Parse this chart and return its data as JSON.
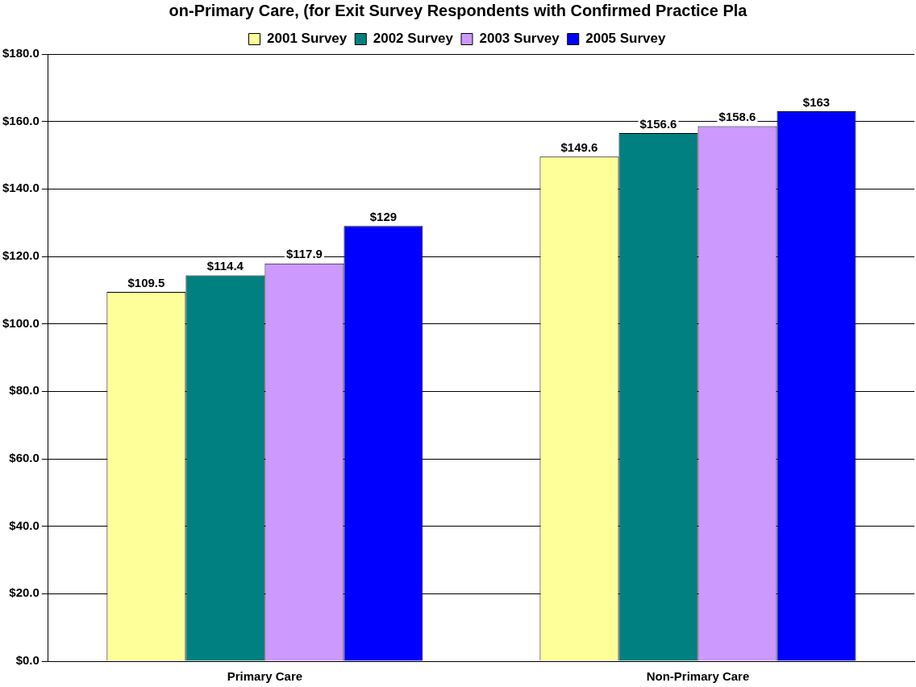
{
  "chart_data": {
    "type": "bar",
    "title": "on-Primary Care, (for Exit Survey Respondents with Confirmed Practice Pla",
    "categories": [
      "Primary Care",
      "Non-Primary Care"
    ],
    "series": [
      {
        "name": "2001 Survey",
        "color": "#ffff99",
        "values": [
          109.5,
          149.6
        ],
        "value_labels": [
          "$109.5",
          "$149.6"
        ]
      },
      {
        "name": "2002 Survey",
        "color": "#008080",
        "values": [
          114.4,
          156.6
        ],
        "value_labels": [
          "$114.4",
          "$156.6"
        ]
      },
      {
        "name": "2003 Survey",
        "color": "#cc99ff",
        "values": [
          117.9,
          158.6
        ],
        "value_labels": [
          "$117.9",
          "$158.6"
        ]
      },
      {
        "name": "2005 Survey",
        "color": "#0000ff",
        "values": [
          129,
          163
        ],
        "value_labels": [
          "$129",
          "$163"
        ]
      }
    ],
    "ylim": [
      0,
      180
    ],
    "yticks": [
      {
        "value": 0,
        "label": "$0.0"
      },
      {
        "value": 20,
        "label": "$20.0"
      },
      {
        "value": 40,
        "label": "$40.0"
      },
      {
        "value": 60,
        "label": "$60.0"
      },
      {
        "value": 80,
        "label": "$80.0"
      },
      {
        "value": 100,
        "label": "$100.0"
      },
      {
        "value": 120,
        "label": "$120.0"
      },
      {
        "value": 140,
        "label": "$140.0"
      },
      {
        "value": 160,
        "label": "$160.0"
      },
      {
        "value": 180,
        "label": "$180.0"
      }
    ],
    "grid": "y",
    "legend": "top"
  }
}
